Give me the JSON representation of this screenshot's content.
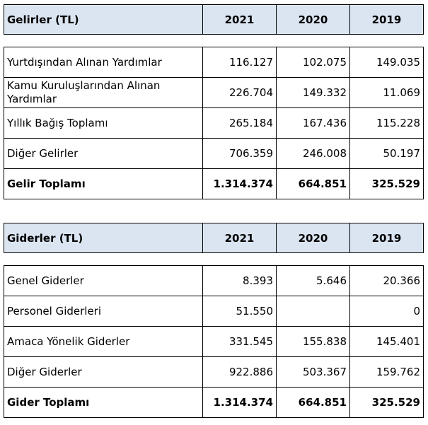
{
  "income_table": {
    "header": [
      "Gelirler (TL)",
      "2021",
      "2020",
      "2019"
    ],
    "rows": [
      [
        "Yurtdışından Alınan Yardımlar",
        "116.127",
        "102.075",
        "149.035"
      ],
      [
        "Kamu Kuruluşlarından Alınan Yardımlar",
        "226.704",
        "149.332",
        "11.069"
      ],
      [
        "Yıllık Bağış Toplamı",
        "265.184",
        "167.436",
        "115.228"
      ],
      [
        "Diğer Gelirler",
        "706.359",
        "246.008",
        "50.197"
      ],
      [
        "Gelir Toplamı",
        "1.314.374",
        "664.851",
        "325.529"
      ]
    ]
  },
  "expense_table": {
    "header": [
      "Giderler (TL)",
      "2021",
      "2020",
      "2019"
    ],
    "rows": [
      [
        "Genel Giderler",
        "8.393",
        "5.646",
        "20.366"
      ],
      [
        "Personel Giderleri",
        "51.550",
        "",
        "0"
      ],
      [
        "Amaca Yönelik Giderler",
        "331.545",
        "155.838",
        "145.401"
      ],
      [
        "Diğer Giderler",
        "922.886",
        "503.367",
        "159.762"
      ],
      [
        "Gider Toplamı",
        "1.314.374",
        "664.851",
        "325.529"
      ]
    ]
  },
  "colors": {
    "header_bg": "#dbe5f1",
    "border": "#000000"
  }
}
